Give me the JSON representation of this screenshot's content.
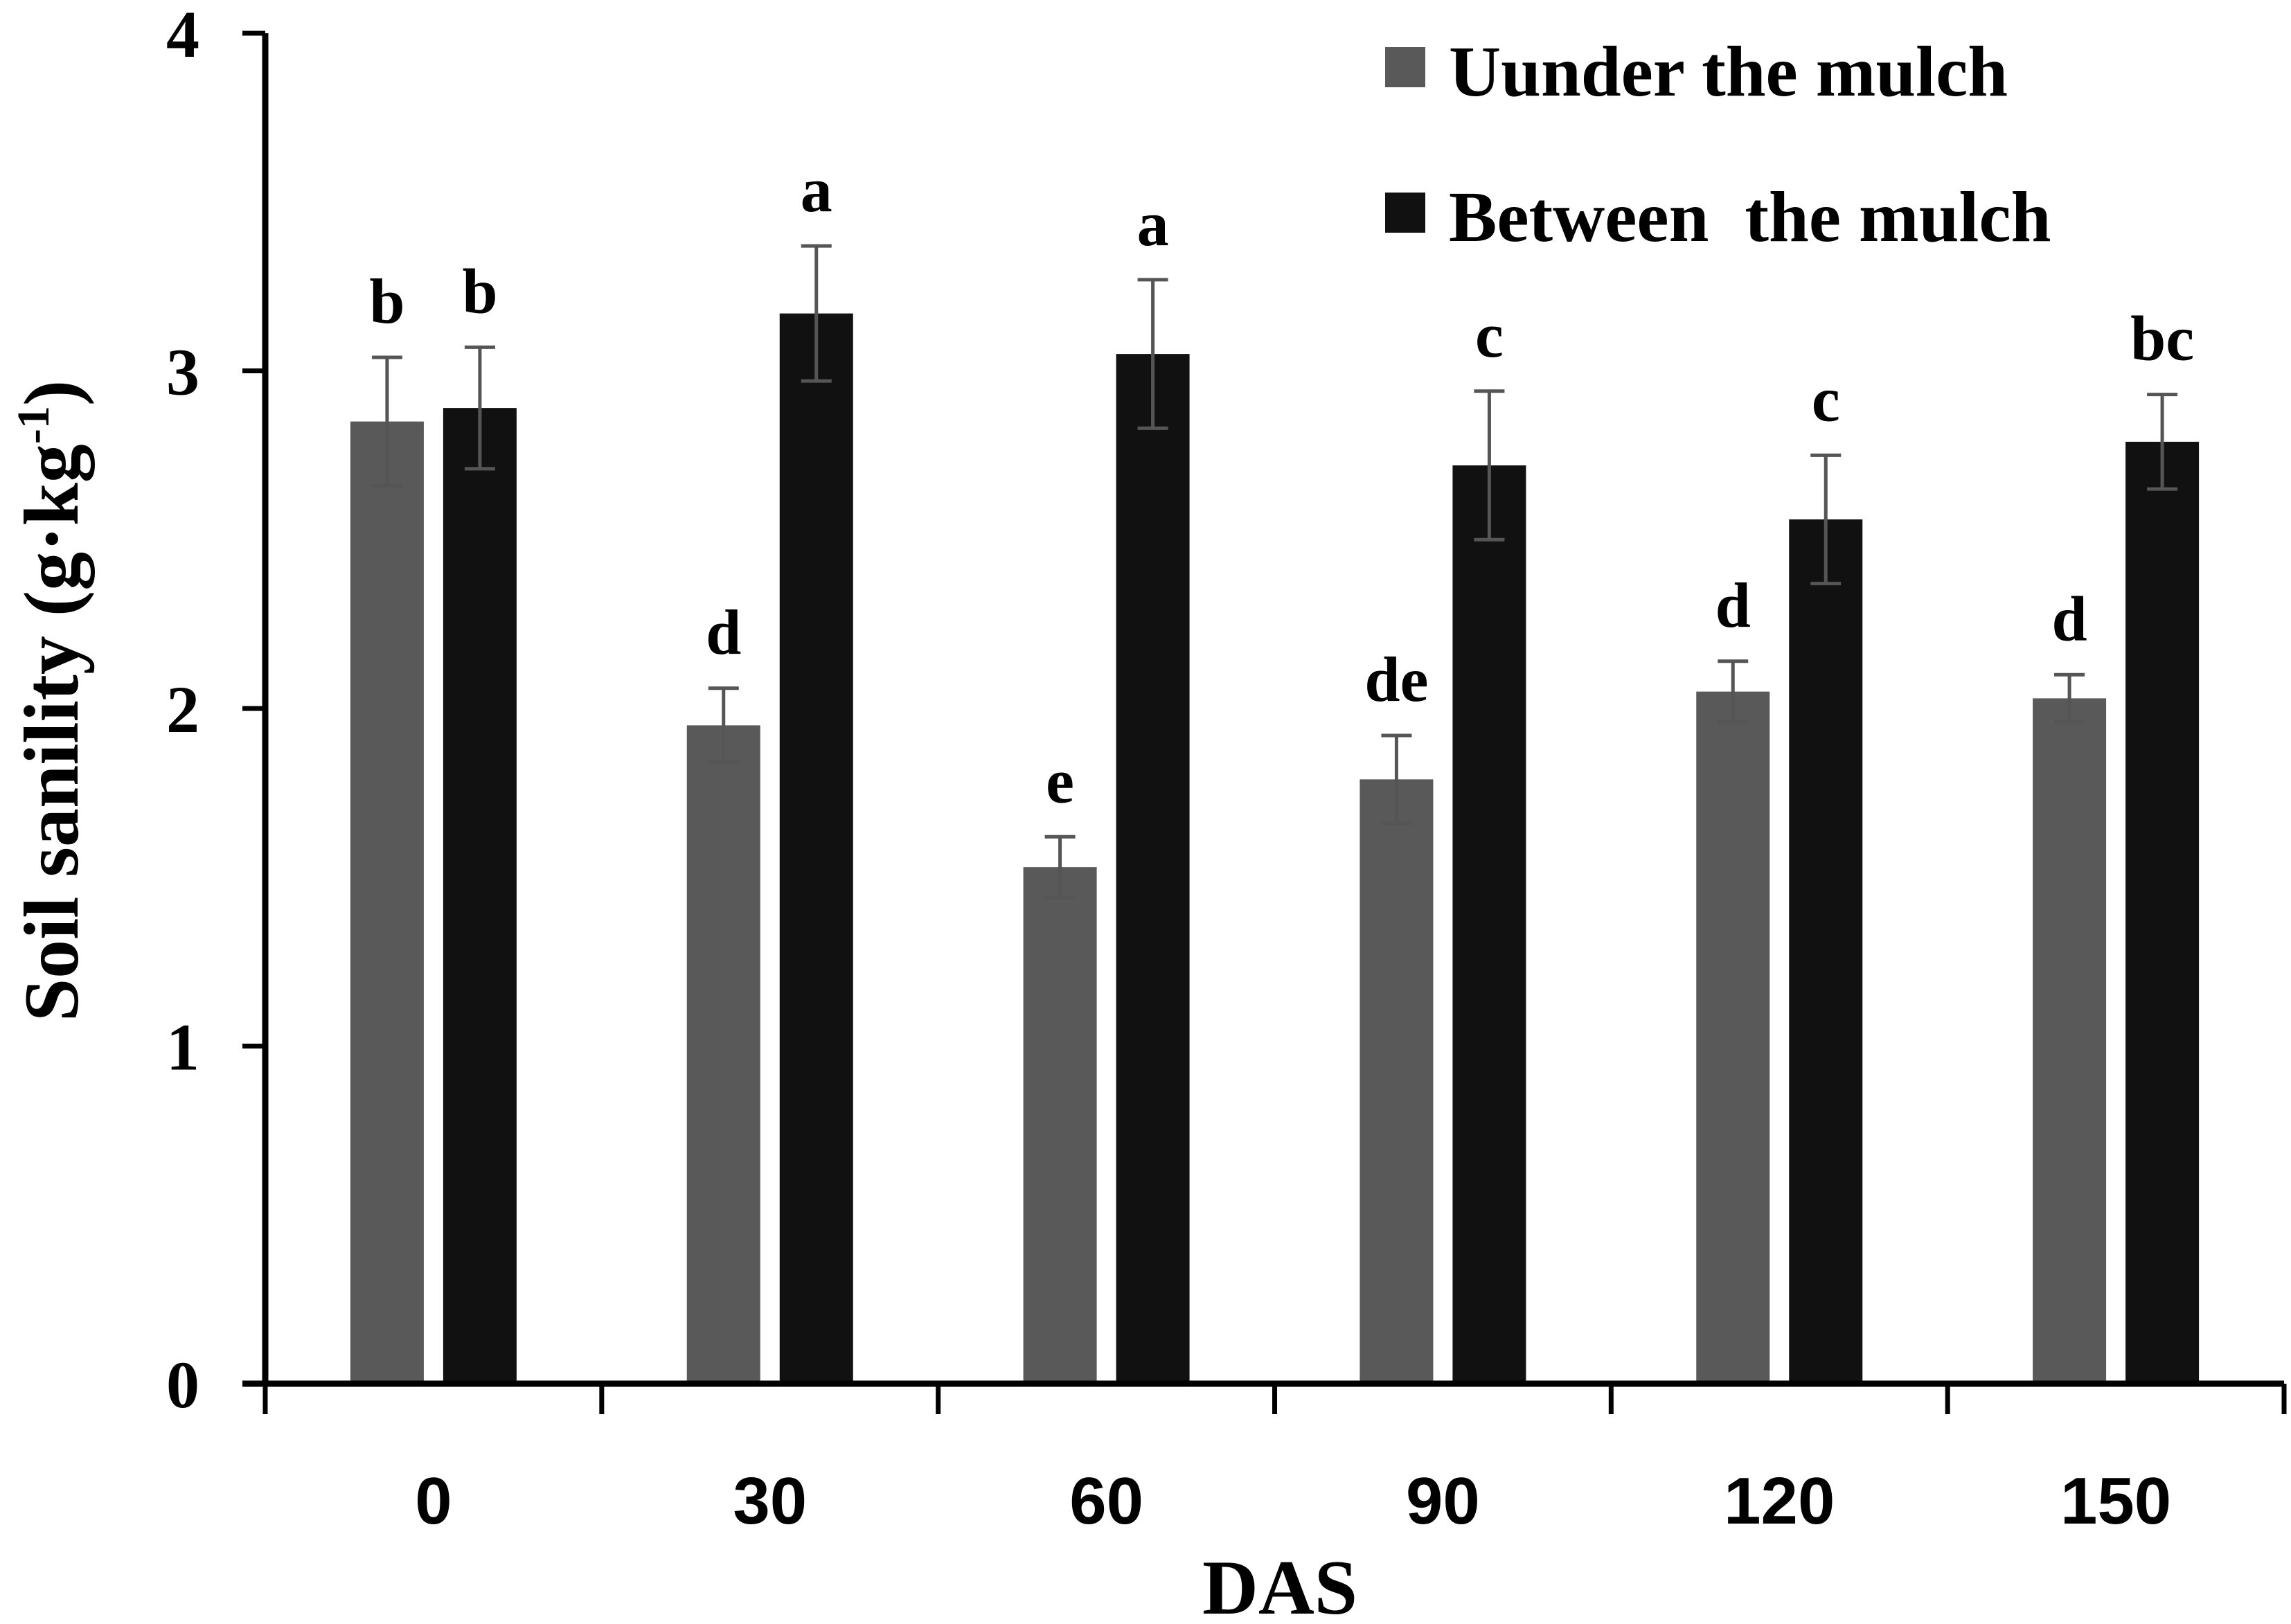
{
  "chart_data": {
    "type": "bar",
    "title": "",
    "xlabel": "DAS",
    "ylabel": "Soil sanility (g·kg",
    "ylabel_sup": "-1",
    "ylabel_close": ")",
    "categories": [
      "0",
      "30",
      "60",
      "90",
      "120",
      "150"
    ],
    "ylim": [
      0,
      4
    ],
    "yticks": [
      "0",
      "1",
      "2",
      "3",
      "4"
    ],
    "grid": false,
    "legend_position": "top-right",
    "series": [
      {
        "name": "Uunder the mulch",
        "color": "#595959",
        "values": [
          2.85,
          1.95,
          1.53,
          1.79,
          2.05,
          2.03
        ],
        "errors": [
          0.19,
          0.11,
          0.09,
          0.13,
          0.09,
          0.07
        ],
        "labels": [
          "b",
          "d",
          "e",
          "de",
          "d",
          "d"
        ]
      },
      {
        "name": "Between  the mulch",
        "color": "#111111",
        "values": [
          2.89,
          3.17,
          3.05,
          2.72,
          2.56,
          2.79
        ],
        "errors": [
          0.18,
          0.2,
          0.22,
          0.22,
          0.19,
          0.14
        ],
        "labels": [
          "b",
          "a",
          "a",
          "c",
          "c",
          "bc"
        ]
      }
    ]
  }
}
